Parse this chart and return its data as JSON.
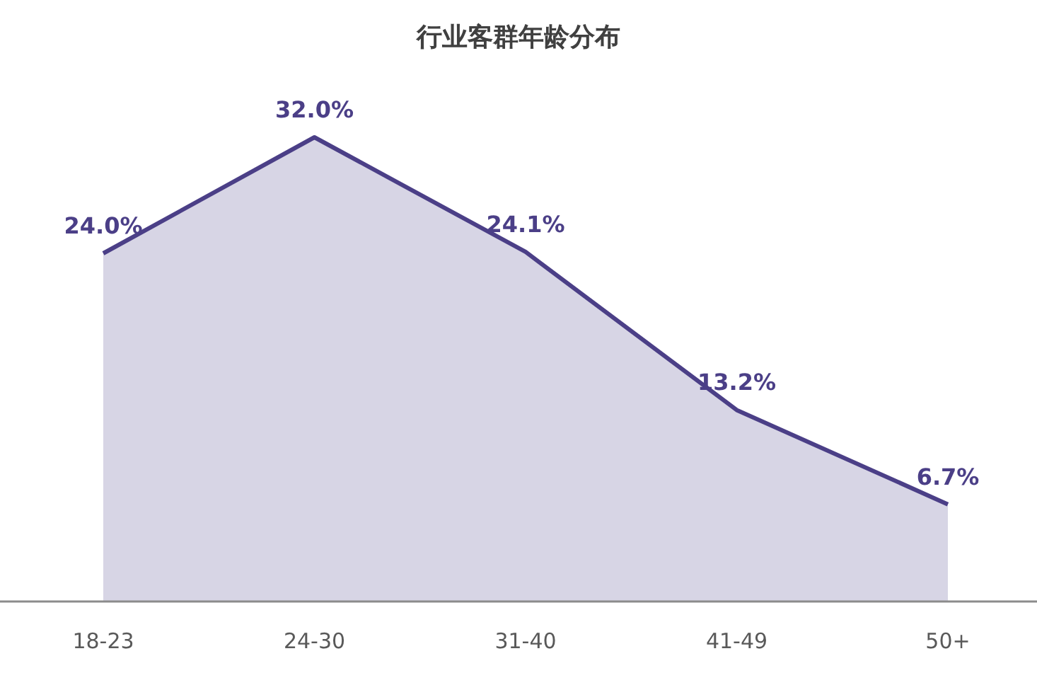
{
  "chart_data": {
    "type": "area",
    "title": "行业客群年龄分布",
    "categories": [
      "18-23",
      "24-30",
      "31-40",
      "41-49",
      "50+"
    ],
    "series": [
      {
        "color": "#4b3f87",
        "values": [
          24.0,
          32.0,
          24.1,
          13.2,
          6.7
        ],
        "value_labels": [
          "24.0%",
          "32.0%",
          "24.1%",
          "13.2%",
          "6.7%"
        ]
      }
    ]
  }
}
